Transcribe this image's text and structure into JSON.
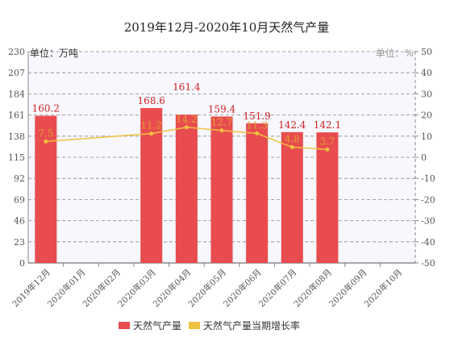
{
  "chart_data": {
    "type": "bar",
    "title": "2019年12月-2020年10月天然气产量",
    "categories": [
      "2019年12月",
      "2020年01月",
      "2020年02月",
      "2020年03月",
      "2020年04月",
      "2020年05月",
      "2020年06月",
      "2020年07月",
      "2020年08月",
      "2020年09月",
      "2020年10月"
    ],
    "y_left_unit": "单位：万吨",
    "y_right_unit": "单位：%",
    "y_left": {
      "min": 0,
      "max": 230,
      "ticks": [
        0,
        23,
        46,
        69,
        92,
        115,
        138,
        161,
        184,
        207,
        230
      ]
    },
    "y_right": {
      "min": -50,
      "max": 50,
      "ticks": [
        -50,
        -40,
        -30,
        -20,
        -10,
        0,
        10,
        20,
        30,
        40,
        50
      ]
    },
    "grid": true,
    "legend_position": "bottom",
    "series": [
      {
        "name": "天然气产量",
        "type": "bar",
        "axis": "left",
        "color": "#e84c4f",
        "values": [
          160.2,
          null,
          null,
          168.6,
          161.4,
          159.4,
          151.9,
          142.4,
          142.1,
          null,
          null
        ]
      },
      {
        "name": "天然气产量当期增长率",
        "type": "line",
        "axis": "right",
        "color": "#f0c040",
        "values": [
          7.5,
          null,
          null,
          11.2,
          14.2,
          12.7,
          11.3,
          4.8,
          3.7,
          null,
          null
        ]
      }
    ]
  },
  "colors": {
    "plot_background": "#f7f7fd",
    "grid": "#888888",
    "bar_label": "#cc2222",
    "line_label": "#e0a030",
    "axis_text": "#555555"
  }
}
